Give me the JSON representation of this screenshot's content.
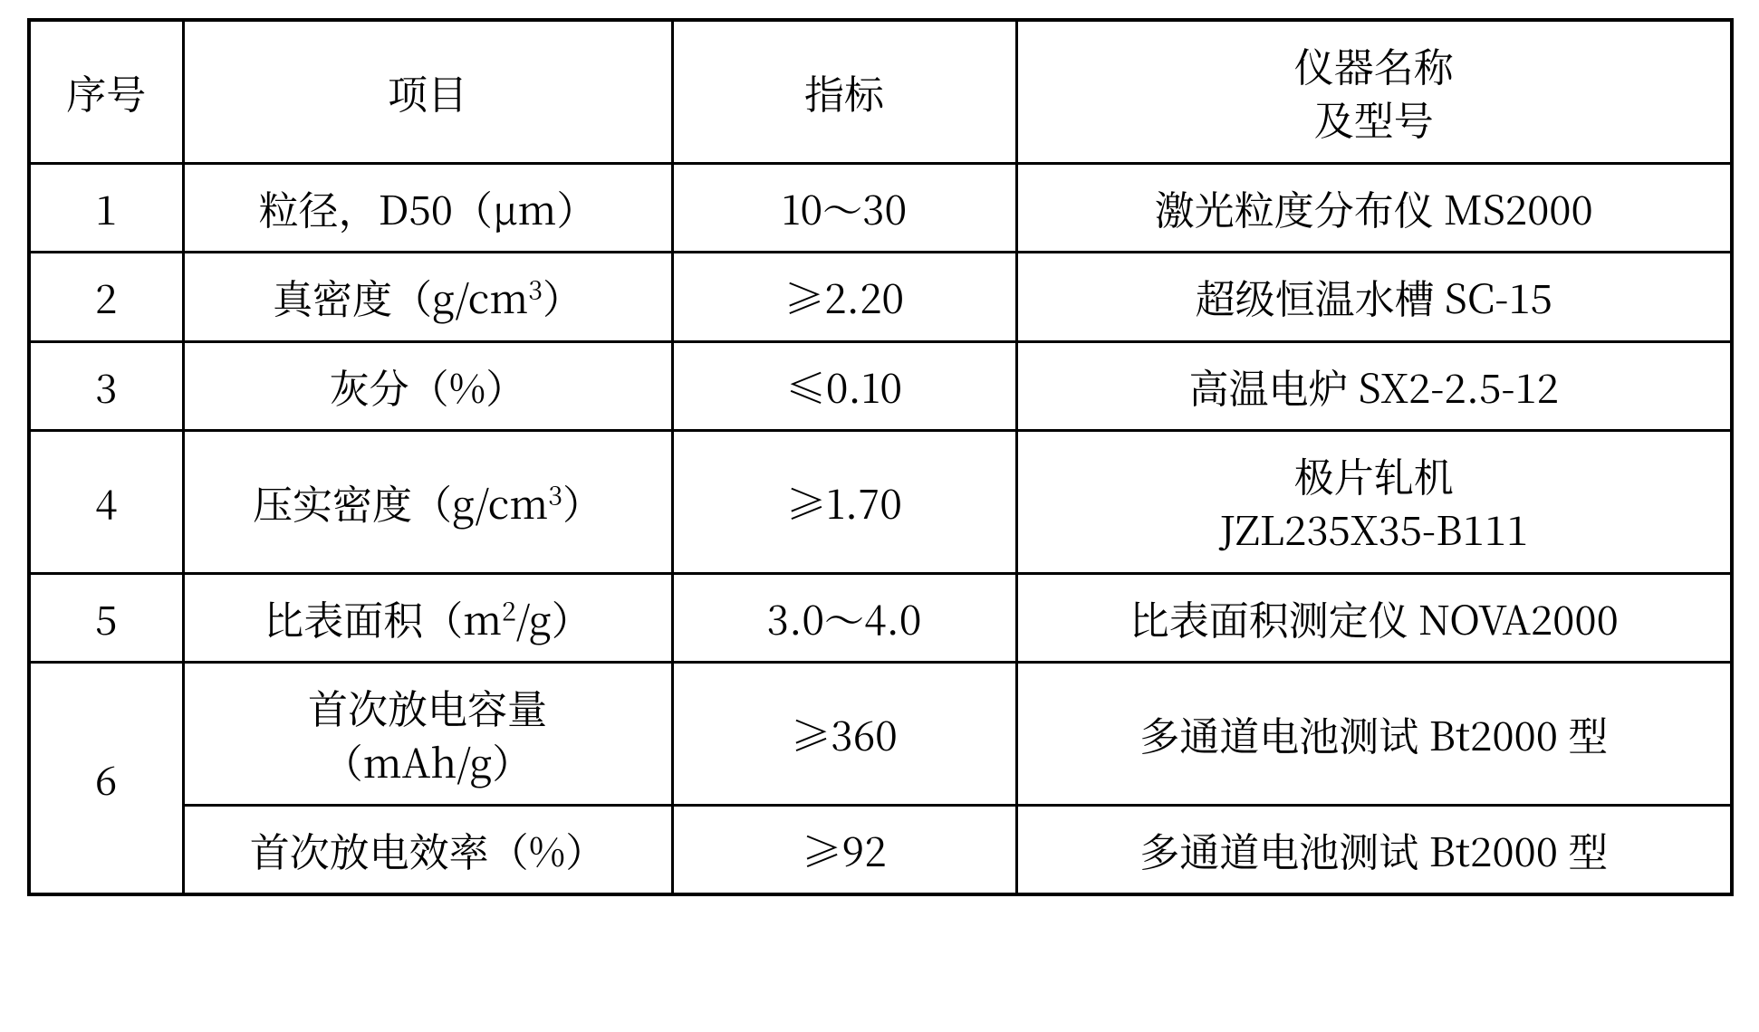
{
  "table": {
    "header": {
      "index": "序号",
      "item": "项目",
      "spec": "指标",
      "instrument_line1": "仪器名称",
      "instrument_line2": "及型号"
    },
    "rows": [
      {
        "index": "1",
        "item_html": "粒径，D50（μm）",
        "spec": "10～30",
        "instrument_html": "激光粒度分布仪 MS2000"
      },
      {
        "index": "2",
        "item_html": "真密度（g/cm<sup>3</sup>）",
        "spec": "≥2.20",
        "instrument_html": "超级恒温水槽 SC-15"
      },
      {
        "index": "3",
        "item_html": "灰分（%）",
        "spec": "≤0.10",
        "instrument_html": "高温电炉 SX2-2.5-12"
      },
      {
        "index": "4",
        "item_html": "压实密度（g/cm<sup>3</sup>）",
        "spec": "≥1.70",
        "instrument_html": "极片轧机<br>JZL235X35-B111"
      },
      {
        "index": "5",
        "item_html": "比表面积（m<sup>2</sup>/g）",
        "spec": "3.0～4.0",
        "instrument_html": "比表面积测定仪 NOVA2000"
      }
    ],
    "row6": {
      "index": "6",
      "sub": [
        {
          "item_html": "首次放电容量<br>（mAh/g）",
          "spec": "≥360",
          "instrument_html": "多通道电池测试 Bt2000 型"
        },
        {
          "item_html": "首次放电效率（%）",
          "spec": "≥92",
          "instrument_html": "多通道电池测试 Bt2000 型"
        }
      ]
    }
  }
}
